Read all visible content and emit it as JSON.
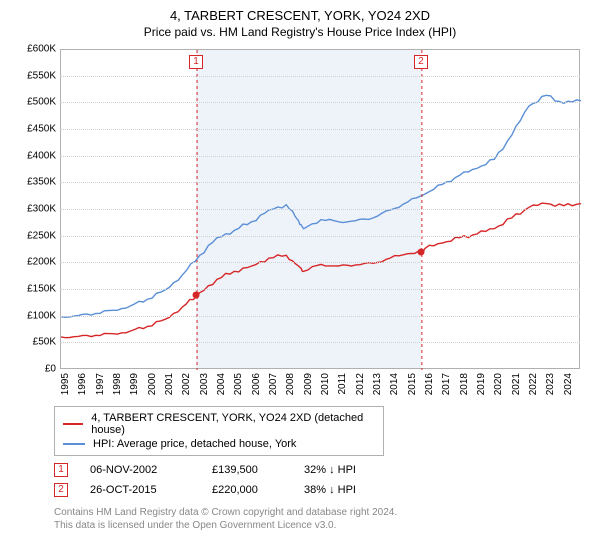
{
  "title": "4, TARBERT CRESCENT, YORK, YO24 2XD",
  "subtitle": "Price paid vs. HM Land Registry's House Price Index (HPI)",
  "chart": {
    "type": "line",
    "background_color": "#ffffff",
    "grid_color": "#d0d0d0",
    "shade_color": "#eef3fa",
    "x_axis": {
      "min_year": 1995,
      "max_year": 2025,
      "ticks": [
        1995,
        1996,
        1997,
        1998,
        1999,
        2000,
        2001,
        2002,
        2003,
        2004,
        2005,
        2006,
        2007,
        2008,
        2009,
        2010,
        2011,
        2012,
        2013,
        2014,
        2015,
        2016,
        2017,
        2018,
        2019,
        2020,
        2021,
        2022,
        2023,
        2024
      ]
    },
    "y_axis": {
      "min": 0,
      "max": 600000,
      "tick_step": 50000,
      "tick_labels": [
        "£0",
        "£50K",
        "£100K",
        "£150K",
        "£200K",
        "£250K",
        "£300K",
        "£350K",
        "£400K",
        "£450K",
        "£500K",
        "£550K",
        "£600K"
      ]
    },
    "series": [
      {
        "name": "4, TARBERT CRESCENT, YORK, YO24 2XD (detached house)",
        "color": "#d62728",
        "line_width": 1.4,
        "data": [
          [
            1995,
            62000
          ],
          [
            1996,
            63000
          ],
          [
            1997,
            65000
          ],
          [
            1998,
            68000
          ],
          [
            1999,
            73000
          ],
          [
            2000,
            82000
          ],
          [
            2001,
            95000
          ],
          [
            2002,
            118000
          ],
          [
            2002.85,
            139500
          ],
          [
            2003,
            145000
          ],
          [
            2004,
            170000
          ],
          [
            2005,
            185000
          ],
          [
            2006,
            195000
          ],
          [
            2007,
            210000
          ],
          [
            2008,
            215000
          ],
          [
            2008.7,
            195000
          ],
          [
            2009,
            185000
          ],
          [
            2010,
            198000
          ],
          [
            2011,
            195000
          ],
          [
            2012,
            197000
          ],
          [
            2013,
            200000
          ],
          [
            2014,
            210000
          ],
          [
            2015,
            218000
          ],
          [
            2015.82,
            220000
          ],
          [
            2016,
            228000
          ],
          [
            2017,
            238000
          ],
          [
            2018,
            248000
          ],
          [
            2019,
            255000
          ],
          [
            2020,
            265000
          ],
          [
            2021,
            285000
          ],
          [
            2022,
            305000
          ],
          [
            2023,
            312000
          ],
          [
            2024,
            308000
          ],
          [
            2025,
            312000
          ]
        ]
      },
      {
        "name": "HPI: Average price, detached house, York",
        "color": "#5b8fd6",
        "line_width": 1.4,
        "data": [
          [
            1995,
            100000
          ],
          [
            1996,
            102000
          ],
          [
            1997,
            106000
          ],
          [
            1998,
            112000
          ],
          [
            1999,
            120000
          ],
          [
            2000,
            133000
          ],
          [
            2001,
            150000
          ],
          [
            2002,
            178000
          ],
          [
            2003,
            215000
          ],
          [
            2004,
            248000
          ],
          [
            2005,
            262000
          ],
          [
            2006,
            278000
          ],
          [
            2007,
            300000
          ],
          [
            2008,
            310000
          ],
          [
            2008.7,
            280000
          ],
          [
            2009,
            265000
          ],
          [
            2010,
            282000
          ],
          [
            2011,
            278000
          ],
          [
            2012,
            280000
          ],
          [
            2013,
            285000
          ],
          [
            2014,
            300000
          ],
          [
            2015,
            315000
          ],
          [
            2016,
            330000
          ],
          [
            2017,
            348000
          ],
          [
            2018,
            365000
          ],
          [
            2019,
            378000
          ],
          [
            2020,
            395000
          ],
          [
            2021,
            440000
          ],
          [
            2022,
            495000
          ],
          [
            2023,
            515000
          ],
          [
            2024,
            500000
          ],
          [
            2025,
            505000
          ]
        ]
      }
    ],
    "sale_markers": [
      {
        "n": 1,
        "year": 2002.85,
        "price": 139500,
        "color": "#d62728",
        "shade_to_year": 2015.82
      },
      {
        "n": 2,
        "year": 2015.82,
        "price": 220000,
        "color": "#d62728",
        "shade_to_year": 2025
      }
    ]
  },
  "legend": {
    "items": [
      {
        "color": "#d62728",
        "label": "4, TARBERT CRESCENT, YORK, YO24 2XD (detached house)"
      },
      {
        "color": "#5b8fd6",
        "label": "HPI: Average price, detached house, York"
      }
    ]
  },
  "sales_table": {
    "rows": [
      {
        "n": "1",
        "marker_color": "#d62728",
        "date": "06-NOV-2002",
        "price": "£139,500",
        "diff": "32% ↓ HPI"
      },
      {
        "n": "2",
        "marker_color": "#d62728",
        "date": "26-OCT-2015",
        "price": "£220,000",
        "diff": "38% ↓ HPI"
      }
    ]
  },
  "footnote_line1": "Contains HM Land Registry data © Crown copyright and database right 2024.",
  "footnote_line2": "This data is licensed under the Open Government Licence v3.0."
}
